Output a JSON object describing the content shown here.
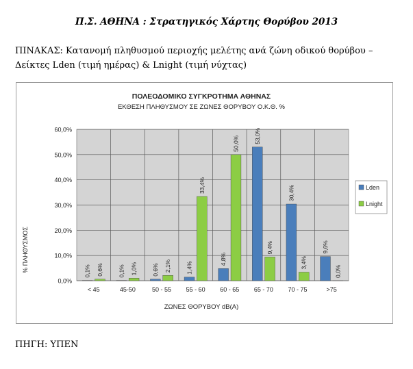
{
  "document": {
    "title": "Π.Σ. ΑΘΗΝΑ : Στρατηγικός Χάρτης Θορύβου 2013",
    "caption_line1": "ΠΙΝΑΚΑΣ: Κατανομή πληθυσμού περιοχής μελέτης ανά ζώνη οδικού θορύβου –",
    "caption_line2": "Δείκτες Lden (τιμή ημέρας) & Lnight (τιμή νύχτας)",
    "source": "ΠΗΓΗ: ΥΠΕΝ"
  },
  "chart_data": {
    "type": "bar",
    "title": "ΠΟΛΕΟΔΟΜΙΚΟ ΣΥΓΚΡΟΤΗΜΑ  ΑΘΗΝΑΣ",
    "subtitle": "ΕΚΘΕΣΗ ΠΛΗΘΥΣΜΟΥ  ΣΕ ΖΩΝΕΣ  ΘΟΡΥΒΟΥ  Ο.Κ.Θ.  %",
    "xlabel": "ΖΩΝΕΣ ΘΟΡΥΒΟΥ  dB(A)",
    "ylabel": "% ΠΛΗΘΥΣΜΟΣ",
    "categories": [
      "< 45",
      "45-50",
      "50 - 55",
      "55 - 60",
      "60 - 65",
      "65 - 70",
      "70 - 75",
      ">75"
    ],
    "series": [
      {
        "name": "Lden",
        "color": "#4a7ebb",
        "values": [
          0.1,
          0.1,
          0.6,
          1.4,
          4.8,
          53.0,
          30.4,
          9.6
        ],
        "labels": [
          "0,1%",
          "0,1%",
          "0,6%",
          "1,4%",
          "4,8%",
          "53,0%",
          "30,4%",
          "9,6%"
        ]
      },
      {
        "name": "Lnight",
        "color": "#8ccd44",
        "values": [
          0.6,
          1.0,
          2.1,
          33.4,
          50.0,
          9.4,
          3.4,
          0.0
        ],
        "labels": [
          "0,6%",
          "1,0%",
          "2,1%",
          "33,4%",
          "50,0%",
          "9,4%",
          "3,4%",
          "0,0%"
        ]
      }
    ],
    "yticks": [
      "0,0%",
      "10,0%",
      "20,0%",
      "30,0%",
      "40,0%",
      "50,0%",
      "60,0%"
    ],
    "ylim": [
      0,
      60
    ],
    "grid": true,
    "legend_position": "right",
    "plot_background": "#d4d4d4"
  }
}
